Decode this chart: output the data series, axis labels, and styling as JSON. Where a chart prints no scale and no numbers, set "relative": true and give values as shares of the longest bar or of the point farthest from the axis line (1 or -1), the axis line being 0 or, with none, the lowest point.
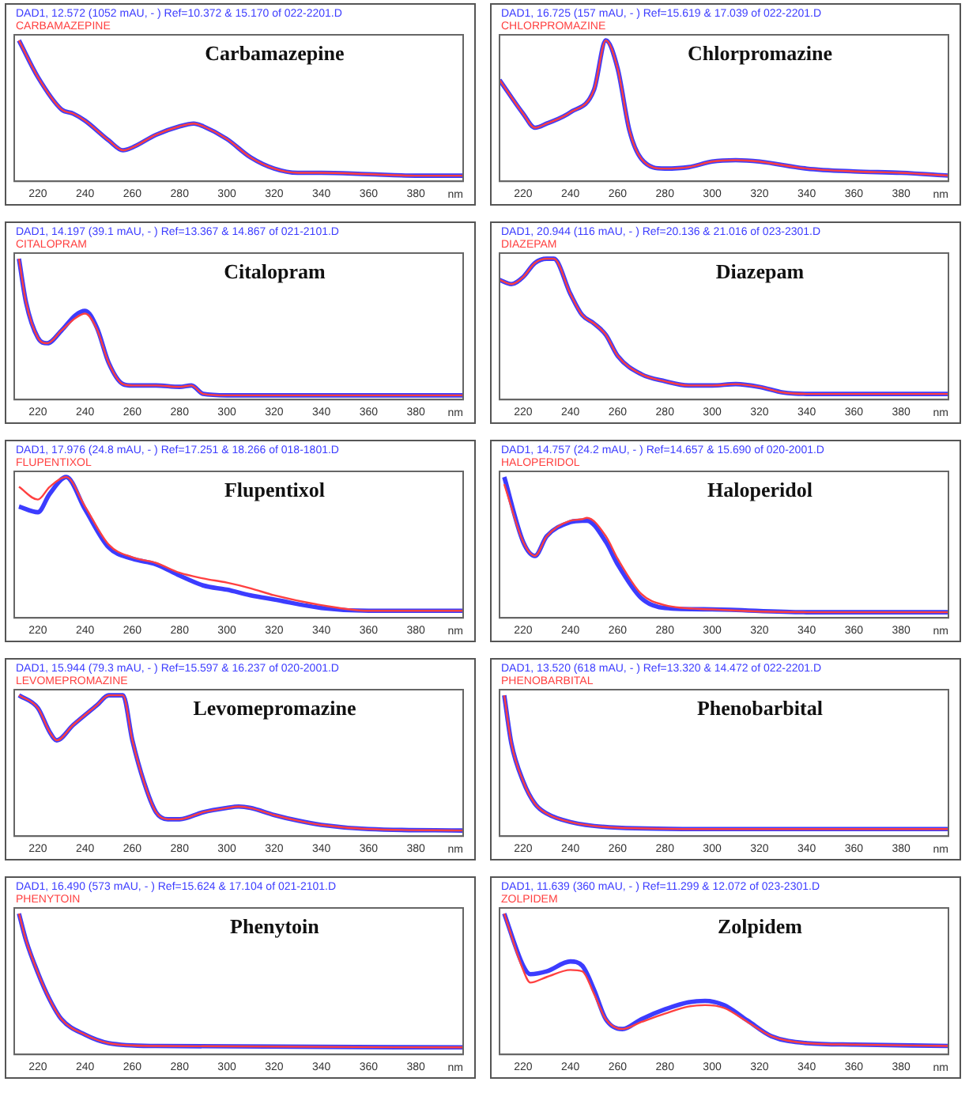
{
  "chart_data": [
    {
      "type": "line",
      "title": "Carbamazepine",
      "subtitle": "DAD1, 12.572 (1052 mAU, - ) Ref=10.372 & 15.170 of 022-2201.D",
      "xlabel": "nm",
      "relative": true,
      "legend": "top left",
      "grid": false,
      "marker": "none",
      "xlim": [
        210,
        400
      ],
      "xticks": [
        220,
        240,
        260,
        280,
        300,
        320,
        340,
        360,
        380
      ],
      "x": [
        212,
        220,
        230,
        235,
        240,
        250,
        256,
        260,
        270,
        280,
        286,
        290,
        300,
        310,
        320,
        330,
        340,
        360,
        380,
        400
      ],
      "series": [
        {
          "color": "#3c3cff",
          "values": [
            1,
            0.74,
            0.51,
            0.48,
            0.43,
            0.29,
            0.22,
            0.24,
            0.33,
            0.39,
            0.41,
            0.39,
            0.3,
            0.17,
            0.09,
            0.06,
            0.06,
            0.05,
            0.04,
            0.04
          ]
        },
        {
          "name": "CARBAMAZEPINE",
          "color": "#ff4040",
          "values": [
            1,
            0.74,
            0.51,
            0.48,
            0.43,
            0.29,
            0.22,
            0.24,
            0.33,
            0.39,
            0.41,
            0.39,
            0.3,
            0.17,
            0.09,
            0.06,
            0.06,
            0.05,
            0.04,
            0.04
          ]
        }
      ]
    },
    {
      "type": "line",
      "title": "Chlorpromazine",
      "subtitle": "DAD1, 16.725 (157 mAU, - ) Ref=15.619 & 17.039 of 022-2201.D",
      "xlabel": "nm",
      "relative": true,
      "legend": "top left",
      "grid": false,
      "marker": "none",
      "xlim": [
        210,
        400
      ],
      "xticks": [
        220,
        240,
        260,
        280,
        300,
        320,
        340,
        360,
        380
      ],
      "x": [
        210,
        220,
        225,
        230,
        240,
        250,
        255,
        260,
        265,
        270,
        280,
        290,
        300,
        310,
        320,
        340,
        360,
        380,
        400
      ],
      "series": [
        {
          "color": "#3c3cff",
          "values": [
            0.72,
            0.48,
            0.38,
            0.41,
            0.49,
            0.65,
            1,
            0.8,
            0.36,
            0.16,
            0.09,
            0.1,
            0.14,
            0.15,
            0.14,
            0.09,
            0.07,
            0.06,
            0.04
          ]
        },
        {
          "name": "CHLORPROMAZINE",
          "color": "#ff4040",
          "values": [
            0.72,
            0.48,
            0.38,
            0.41,
            0.49,
            0.65,
            1,
            0.8,
            0.36,
            0.16,
            0.09,
            0.1,
            0.14,
            0.15,
            0.14,
            0.09,
            0.07,
            0.06,
            0.04
          ]
        }
      ]
    },
    {
      "type": "line",
      "title": "Citalopram",
      "subtitle": "DAD1, 14.197 (39.1 mAU, - ) Ref=13.367 & 14.867 of 021-2101.D",
      "xlabel": "nm",
      "relative": true,
      "legend": "top left",
      "grid": false,
      "marker": "none",
      "xlim": [
        210,
        400
      ],
      "xticks": [
        220,
        240,
        260,
        280,
        300,
        320,
        340,
        360,
        380
      ],
      "x": [
        212,
        215,
        220,
        224,
        230,
        236,
        240,
        245,
        250,
        256,
        260,
        270,
        280,
        285,
        290,
        300,
        400
      ],
      "series": [
        {
          "color": "#3c3cff",
          "values": [
            1,
            0.69,
            0.44,
            0.4,
            0.49,
            0.6,
            0.63,
            0.51,
            0.26,
            0.11,
            0.1,
            0.1,
            0.09,
            0.1,
            0.04,
            0.03,
            0.03
          ]
        },
        {
          "name": "CITALOPRAM",
          "color": "#ff4040",
          "values": [
            1,
            0.69,
            0.44,
            0.4,
            0.49,
            0.58,
            0.61,
            0.5,
            0.26,
            0.11,
            0.1,
            0.1,
            0.09,
            0.1,
            0.04,
            0.03,
            0.03
          ]
        }
      ]
    },
    {
      "type": "line",
      "title": "Diazepam",
      "subtitle": "DAD1, 20.944 (116 mAU, - ) Ref=20.136 & 21.016 of 023-2301.D",
      "xlabel": "nm",
      "relative": true,
      "legend": "top left",
      "grid": false,
      "marker": "none",
      "xlim": [
        210,
        400
      ],
      "xticks": [
        220,
        240,
        260,
        280,
        300,
        320,
        340,
        360,
        380
      ],
      "x": [
        210,
        215,
        220,
        225,
        230,
        233,
        240,
        245,
        250,
        255,
        260,
        270,
        280,
        290,
        300,
        310,
        320,
        330,
        340,
        400
      ],
      "series": [
        {
          "color": "#3c3cff",
          "values": [
            0.85,
            0.82,
            0.87,
            0.97,
            1,
            1,
            0.75,
            0.6,
            0.54,
            0.46,
            0.31,
            0.18,
            0.13,
            0.1,
            0.1,
            0.11,
            0.09,
            0.05,
            0.04,
            0.04
          ]
        },
        {
          "name": "DIAZEPAM",
          "color": "#ff4040",
          "values": [
            0.85,
            0.82,
            0.87,
            0.97,
            1,
            1,
            0.75,
            0.6,
            0.54,
            0.46,
            0.31,
            0.18,
            0.13,
            0.1,
            0.1,
            0.11,
            0.09,
            0.05,
            0.04,
            0.04
          ]
        }
      ]
    },
    {
      "type": "line",
      "title": "Flupentixol",
      "subtitle": "DAD1, 17.976 (24.8 mAU, - ) Ref=17.251 & 18.266 of 018-1801.D",
      "xlabel": "nm",
      "relative": true,
      "legend": "top left",
      "grid": false,
      "marker": "none",
      "xlim": [
        210,
        400
      ],
      "xticks": [
        220,
        240,
        260,
        280,
        300,
        320,
        340,
        360,
        380
      ],
      "x": [
        212,
        220,
        225,
        232,
        240,
        250,
        260,
        270,
        280,
        290,
        300,
        310,
        320,
        340,
        360,
        380,
        400
      ],
      "series": [
        {
          "color": "#3c3cff",
          "values": [
            0.79,
            0.75,
            0.88,
            1,
            0.77,
            0.5,
            0.42,
            0.38,
            0.3,
            0.23,
            0.2,
            0.16,
            0.13,
            0.07,
            0.05,
            0.05,
            0.05
          ]
        },
        {
          "name": "FLUPENTIXOL",
          "color": "#ff4040",
          "values": [
            0.93,
            0.84,
            0.93,
            1,
            0.79,
            0.52,
            0.43,
            0.39,
            0.32,
            0.28,
            0.25,
            0.21,
            0.16,
            0.09,
            0.05,
            0.05,
            0.05
          ]
        }
      ]
    },
    {
      "type": "line",
      "title": "Haloperidol",
      "subtitle": "DAD1, 14.757 (24.2 mAU, - ) Ref=14.657 & 15.690 of 020-2001.D",
      "xlabel": "nm",
      "relative": true,
      "legend": "top left",
      "grid": false,
      "marker": "none",
      "xlim": [
        210,
        400
      ],
      "xticks": [
        220,
        240,
        260,
        280,
        300,
        320,
        340,
        360,
        380
      ],
      "x": [
        212,
        220,
        225,
        230,
        240,
        245,
        247,
        255,
        260,
        270,
        280,
        300,
        340,
        400
      ],
      "series": [
        {
          "color": "#3c3cff",
          "values": [
            1,
            0.54,
            0.44,
            0.58,
            0.68,
            0.69,
            0.69,
            0.54,
            0.38,
            0.14,
            0.07,
            0.06,
            0.04,
            0.04
          ]
        },
        {
          "name": "HALOPERIDOL",
          "color": "#ff4040",
          "values": [
            0.95,
            0.54,
            0.44,
            0.58,
            0.69,
            0.7,
            0.71,
            0.58,
            0.42,
            0.17,
            0.09,
            0.06,
            0.04,
            0.04
          ]
        }
      ]
    },
    {
      "type": "line",
      "title": "Levomepromazine",
      "subtitle": "DAD1, 15.944 (79.3 mAU, - ) Ref=15.597 & 16.237 of 020-2001.D",
      "xlabel": "nm",
      "relative": true,
      "legend": "top left",
      "grid": false,
      "marker": "none",
      "xlim": [
        210,
        400
      ],
      "xticks": [
        220,
        240,
        260,
        280,
        300,
        320,
        340,
        360,
        380
      ],
      "x": [
        212,
        220,
        225,
        228,
        235,
        245,
        250,
        256,
        260,
        265,
        270,
        275,
        280,
        290,
        300,
        305,
        310,
        320,
        330,
        340,
        360,
        400
      ],
      "series": [
        {
          "color": "#3c3cff",
          "values": [
            1,
            0.91,
            0.74,
            0.68,
            0.79,
            0.93,
            1,
            1,
            0.68,
            0.38,
            0.17,
            0.12,
            0.12,
            0.17,
            0.2,
            0.21,
            0.2,
            0.15,
            0.11,
            0.08,
            0.05,
            0.04
          ]
        },
        {
          "name": "LEVOMEPROMAZINE",
          "color": "#ff4040",
          "values": [
            1,
            0.91,
            0.74,
            0.68,
            0.79,
            0.93,
            1,
            1,
            0.68,
            0.38,
            0.17,
            0.12,
            0.12,
            0.17,
            0.2,
            0.21,
            0.2,
            0.15,
            0.11,
            0.08,
            0.05,
            0.04
          ]
        }
      ]
    },
    {
      "type": "line",
      "title": "Phenobarbital",
      "subtitle": "DAD1, 13.520 (618 mAU, - ) Ref=13.320 & 14.472 of 022-2201.D",
      "xlabel": "nm",
      "relative": true,
      "legend": "top left",
      "grid": false,
      "marker": "none",
      "xlim": [
        210,
        400
      ],
      "xticks": [
        220,
        240,
        260,
        280,
        300,
        320,
        340,
        360,
        380
      ],
      "x": [
        212,
        215,
        220,
        225,
        230,
        240,
        260,
        300,
        400
      ],
      "series": [
        {
          "color": "#3c3cff",
          "values": [
            1,
            0.66,
            0.39,
            0.23,
            0.16,
            0.1,
            0.06,
            0.05,
            0.05
          ]
        },
        {
          "name": "PHENOBARBITAL",
          "color": "#ff4040",
          "values": [
            1,
            0.66,
            0.39,
            0.23,
            0.16,
            0.1,
            0.06,
            0.05,
            0.05
          ]
        }
      ]
    },
    {
      "type": "line",
      "title": "Phenytoin",
      "subtitle": "DAD1, 16.490 (573 mAU, - ) Ref=15.624 & 17.104 of 021-2101.D",
      "xlabel": "nm",
      "relative": true,
      "legend": "top left",
      "grid": false,
      "marker": "none",
      "xlim": [
        210,
        400
      ],
      "xticks": [
        220,
        240,
        260,
        280,
        300,
        320,
        340,
        360,
        380
      ],
      "x": [
        212,
        215,
        220,
        225,
        230,
        240,
        250,
        270,
        400
      ],
      "series": [
        {
          "color": "#3c3cff",
          "values": [
            1,
            0.81,
            0.58,
            0.39,
            0.25,
            0.14,
            0.08,
            0.06,
            0.05
          ]
        },
        {
          "name": "PHENYTOIN",
          "color": "#ff4040",
          "values": [
            1,
            0.81,
            0.58,
            0.39,
            0.25,
            0.14,
            0.08,
            0.06,
            0.05
          ]
        }
      ]
    },
    {
      "type": "line",
      "title": "Zolpidem",
      "subtitle": "DAD1, 11.639 (360 mAU, - ) Ref=11.299 & 12.072 of 023-2301.D",
      "xlabel": "nm",
      "relative": true,
      "legend": "top left",
      "grid": false,
      "marker": "none",
      "xlim": [
        210,
        400
      ],
      "xticks": [
        220,
        240,
        260,
        280,
        300,
        320,
        340,
        360,
        380
      ],
      "x": [
        212,
        220,
        223,
        230,
        240,
        245,
        250,
        255,
        262,
        270,
        280,
        290,
        297,
        305,
        315,
        325,
        340,
        360,
        400
      ],
      "series": [
        {
          "color": "#3c3cff",
          "values": [
            1,
            0.63,
            0.57,
            0.59,
            0.66,
            0.63,
            0.46,
            0.25,
            0.18,
            0.25,
            0.32,
            0.37,
            0.38,
            0.35,
            0.24,
            0.13,
            0.08,
            0.07,
            0.06
          ]
        },
        {
          "name": "ZOLPIDEM",
          "color": "#ff4040",
          "values": [
            1,
            0.6,
            0.51,
            0.55,
            0.6,
            0.59,
            0.43,
            0.25,
            0.18,
            0.23,
            0.29,
            0.34,
            0.35,
            0.33,
            0.23,
            0.13,
            0.08,
            0.07,
            0.06
          ]
        }
      ]
    }
  ]
}
